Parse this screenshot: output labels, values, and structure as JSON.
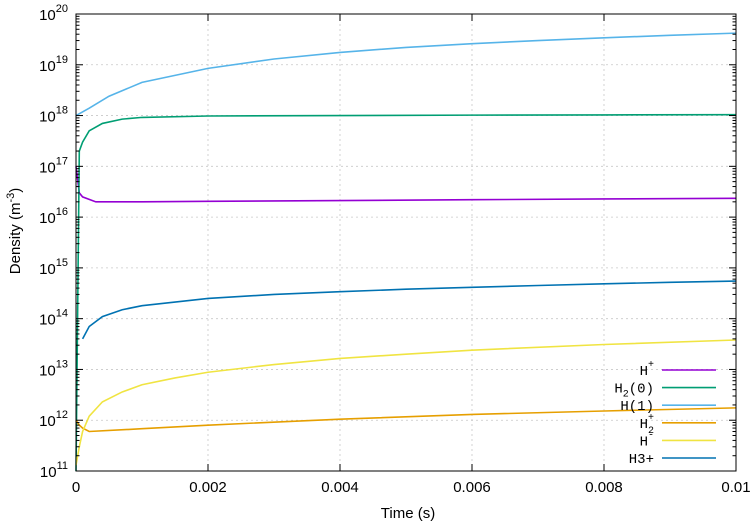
{
  "chart_data": {
    "type": "line",
    "xlabel": "Time (s)",
    "ylabel": {
      "main": "Density (m",
      "sup": "-3",
      "close": ")"
    },
    "x_scale": "linear",
    "y_scale": "log",
    "xlim": [
      0,
      0.01
    ],
    "ylim": [
      100000000000.0,
      1e+20
    ],
    "grid": true,
    "legend_position": "bottom-right",
    "x_ticks": [
      {
        "value": 0,
        "label": "0"
      },
      {
        "value": 0.002,
        "label": "0.002"
      },
      {
        "value": 0.004,
        "label": "0.004"
      },
      {
        "value": 0.006,
        "label": "0.006"
      },
      {
        "value": 0.008,
        "label": "0.008"
      },
      {
        "value": 0.01,
        "label": "0.01"
      }
    ],
    "y_ticks": [
      {
        "value": 100000000000.0,
        "base": "10",
        "exp": "11"
      },
      {
        "value": 1000000000000.0,
        "base": "10",
        "exp": "12"
      },
      {
        "value": 10000000000000.0,
        "base": "10",
        "exp": "13"
      },
      {
        "value": 100000000000000.0,
        "base": "10",
        "exp": "14"
      },
      {
        "value": 1000000000000000.0,
        "base": "10",
        "exp": "15"
      },
      {
        "value": 1e+16,
        "base": "10",
        "exp": "16"
      },
      {
        "value": 1e+17,
        "base": "10",
        "exp": "17"
      },
      {
        "value": 1e+18,
        "base": "10",
        "exp": "18"
      },
      {
        "value": 1e+19,
        "base": "10",
        "exp": "19"
      },
      {
        "value": 1e+20,
        "base": "10",
        "exp": "20"
      }
    ],
    "series": [
      {
        "name": "H+",
        "legend": {
          "base": "H",
          "sup": "+",
          "sub": "",
          "rest": ""
        },
        "color": "#9400d3",
        "x": [
          0,
          5e-05,
          0.0001,
          0.0003,
          0.001,
          0.002,
          0.004,
          0.006,
          0.008,
          0.01
        ],
        "y": [
          1e+17,
          3e+16,
          2.5e+16,
          2e+16,
          2e+16,
          2.05e+16,
          2.12e+16,
          2.2e+16,
          2.28e+16,
          2.35e+16
        ]
      },
      {
        "name": "H2(0)",
        "legend": {
          "base": "H",
          "sup": "",
          "sub": "2",
          "rest": "(0)"
        },
        "color": "#009e73",
        "x": [
          0,
          5e-05,
          0.0001,
          0.0002,
          0.0004,
          0.0007,
          0.001,
          0.002,
          0.004,
          0.006,
          0.008,
          0.01
        ],
        "y": [
          100000000000.0,
          2e+17,
          3e+17,
          5e+17,
          7e+17,
          8.5e+17,
          9.2e+17,
          9.8e+17,
          1e+18,
          1.02e+18,
          1.03e+18,
          1.04e+18
        ]
      },
      {
        "name": "H(1)",
        "legend": {
          "base": "H",
          "sup": "",
          "sub": "",
          "rest": "(1)"
        },
        "color": "#56b4e9",
        "x": [
          0,
          0.0002,
          0.0005,
          0.001,
          0.002,
          0.003,
          0.004,
          0.005,
          0.006,
          0.007,
          0.008,
          0.009,
          0.01
        ],
        "y": [
          1e+18,
          1.4e+18,
          2.4e+18,
          4.5e+18,
          8.5e+18,
          1.3e+19,
          1.75e+19,
          2.2e+19,
          2.6e+19,
          3e+19,
          3.4e+19,
          3.8e+19,
          4.2e+19
        ]
      },
      {
        "name": "H2+",
        "legend": {
          "base": "H",
          "sup": "+",
          "sub": "2",
          "rest": ""
        },
        "color": "#e69f00",
        "x": [
          0,
          5e-05,
          0.0001,
          0.0002,
          0.001,
          0.002,
          0.004,
          0.006,
          0.008,
          0.01
        ],
        "y": [
          1000000000000.0,
          800000000000.0,
          700000000000.0,
          600000000000.0,
          680000000000.0,
          800000000000.0,
          1050000000000.0,
          1300000000000.0,
          1520000000000.0,
          1750000000000.0
        ]
      },
      {
        "name": "H-",
        "legend": {
          "base": "H",
          "sup": "-",
          "sub": "",
          "rest": ""
        },
        "color": "#f0e442",
        "x": [
          0,
          5e-05,
          0.0001,
          0.0002,
          0.0004,
          0.0007,
          0.001,
          0.0015,
          0.002,
          0.003,
          0.004,
          0.005,
          0.006,
          0.008,
          0.01
        ],
        "y": [
          130000000000.0,
          300000000000.0,
          600000000000.0,
          1200000000000.0,
          2300000000000.0,
          3600000000000.0,
          5000000000000.0,
          6800000000000.0,
          8800000000000.0,
          12500000000000.0,
          16500000000000.0,
          20000000000000.0,
          24000000000000.0,
          31000000000000.0,
          38000000000000.0
        ]
      },
      {
        "name": "H3+",
        "legend": {
          "base": "H3+",
          "sup": "",
          "sub": "",
          "rest": ""
        },
        "color": "#0072b2",
        "x": [
          0.0001,
          0.0002,
          0.0004,
          0.0007,
          0.001,
          0.002,
          0.003,
          0.004,
          0.005,
          0.006,
          0.007,
          0.008,
          0.009,
          0.01
        ],
        "y": [
          40000000000000.0,
          70000000000000.0,
          110000000000000.0,
          150000000000000.0,
          180000000000000.0,
          250000000000000.0,
          300000000000000.0,
          340000000000000.0,
          380000000000000.0,
          415000000000000.0,
          450000000000000.0,
          485000000000000.0,
          520000000000000.0,
          550000000000000.0
        ]
      }
    ]
  }
}
